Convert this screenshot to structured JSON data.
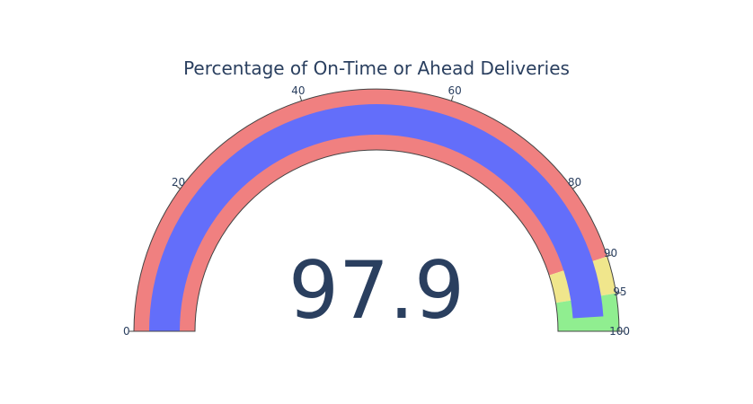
{
  "chart_data": {
    "type": "gauge",
    "title": "Percentage of On-Time or Ahead Deliveries",
    "value": 97.9,
    "value_label": "97.9",
    "range": [
      0,
      100
    ],
    "ticks": [
      {
        "value": 0,
        "label": "0"
      },
      {
        "value": 20,
        "label": "20"
      },
      {
        "value": 40,
        "label": "40"
      },
      {
        "value": 60,
        "label": "60"
      },
      {
        "value": 80,
        "label": "80"
      },
      {
        "value": 90,
        "label": "90"
      },
      {
        "value": 95,
        "label": "95"
      },
      {
        "value": 100,
        "label": "100"
      }
    ],
    "steps": [
      {
        "range": [
          0,
          90
        ],
        "color": "#f08080"
      },
      {
        "range": [
          90,
          95
        ],
        "color": "#f0e68c"
      },
      {
        "range": [
          95,
          100
        ],
        "color": "#90ee90"
      }
    ],
    "bar_color": "#636efa",
    "text_color": "#2a3f5f",
    "border_color": "#444444"
  }
}
